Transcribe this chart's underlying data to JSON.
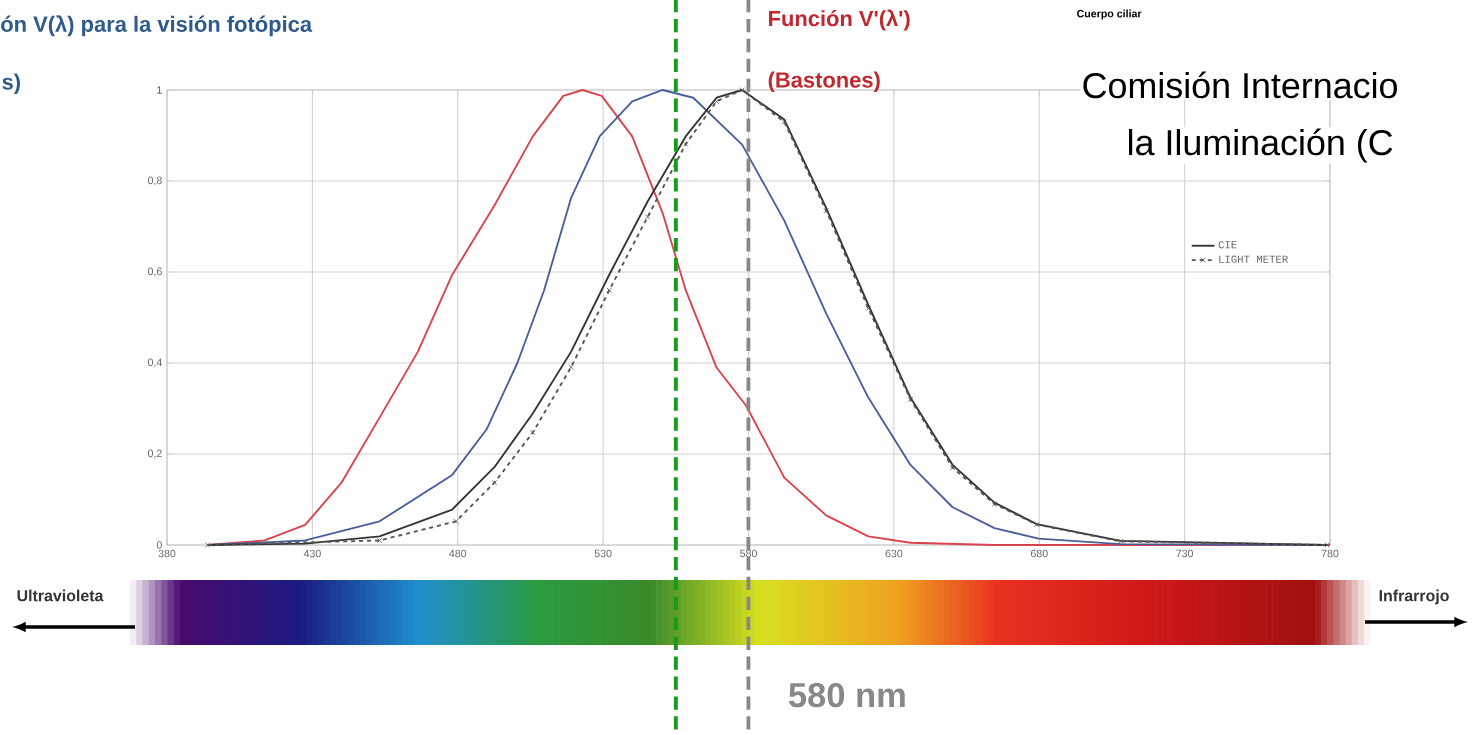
{
  "chart_data": {
    "type": "line",
    "title": "ón V(λ) para la visión fotópica",
    "xlim": [
      380,
      780
    ],
    "ylim": [
      0,
      1
    ],
    "xticks": [
      380,
      430,
      480,
      530,
      580,
      630,
      680,
      730,
      780
    ],
    "yticks": [
      0,
      {
        "value": 0.2,
        "label": "0,2"
      },
      {
        "value": 0.4,
        "label": "0,4"
      },
      {
        "value": 0.6,
        "label": "0,6"
      },
      {
        "value": 0.8,
        "label": "0,8"
      },
      1
    ],
    "grid": true,
    "legend": "right",
    "series": [
      {
        "color": "#d9434b",
        "x": [
          394,
          413.6,
          427.5,
          440,
          453.1,
          466.3,
          478.1,
          492.6,
          505.8,
          516.3,
          522.9,
          529.5,
          540,
          550.5,
          558.4,
          569,
          579.2,
          592.3,
          606.7,
          621.2,
          635.7,
          664.6,
          780
        ],
        "values": [
          0,
          0.01,
          0.044,
          0.137,
          0.28,
          0.425,
          0.594,
          0.746,
          0.898,
          0.987,
          1.0,
          0.987,
          0.898,
          0.729,
          0.56,
          0.39,
          0.306,
          0.148,
          0.065,
          0.019,
          0.005,
          0,
          0
        ]
      },
      {
        "color": "#4a5f9a",
        "x": [
          394,
          427.5,
          453.1,
          478.1,
          490,
          500.5,
          509.7,
          519,
          528.8,
          540,
          550.5,
          561,
          577.8,
          592.3,
          606.7,
          621.2,
          635.7,
          650.2,
          664.6,
          679.8,
          708,
          779
        ],
        "values": [
          0,
          0.01,
          0.052,
          0.154,
          0.255,
          0.4,
          0.56,
          0.763,
          0.898,
          0.975,
          1.0,
          0.983,
          0.88,
          0.713,
          0.509,
          0.324,
          0.176,
          0.083,
          0.037,
          0.014,
          0.002,
          0
        ]
      },
      {
        "name": "CIE",
        "color": "#333333",
        "line_style": "solid",
        "x": [
          394,
          427.5,
          453.1,
          478.1,
          492.6,
          505.8,
          519,
          532.1,
          545.3,
          558.4,
          569,
          577.8,
          592.3,
          606.7,
          621.2,
          635.7,
          650.2,
          664.6,
          679.1,
          708,
          779
        ],
        "values": [
          0,
          0.003,
          0.019,
          0.078,
          0.171,
          0.289,
          0.425,
          0.594,
          0.755,
          0.898,
          0.983,
          1.0,
          0.935,
          0.741,
          0.528,
          0.324,
          0.176,
          0.093,
          0.046,
          0.009,
          0
        ]
      },
      {
        "name": "LIGHT METER",
        "color": "#555555",
        "line_style": "dashed",
        "marker": "cross",
        "x": [
          394,
          453.1,
          479.4,
          492.6,
          505.8,
          519,
          532.1,
          545.3,
          558.4,
          569,
          577.8,
          592.3,
          606.7,
          621.2,
          635.7,
          650.2,
          664.6,
          679.1,
          708,
          779
        ],
        "values": [
          0,
          0.01,
          0.052,
          0.137,
          0.247,
          0.391,
          0.56,
          0.721,
          0.881,
          0.975,
          1.0,
          0.93,
          0.735,
          0.52,
          0.32,
          0.17,
          0.09,
          0.045,
          0.008,
          0
        ]
      }
    ],
    "ref_lines": [
      {
        "axis": "x",
        "value": 555,
        "color": "#1a9a1a",
        "line_style": "dashed"
      },
      {
        "axis": "x",
        "value": 580,
        "label": "580 nm",
        "color": "#888888",
        "line_style": "dashed"
      }
    ],
    "annotations": [
      "s)",
      "Función V'(λ')",
      "(Bastones)",
      "Cuerpo ciliar",
      "Comisión Internacio",
      "la Iluminación (C",
      "Ultravioleta",
      "Infrarrojo"
    ]
  }
}
